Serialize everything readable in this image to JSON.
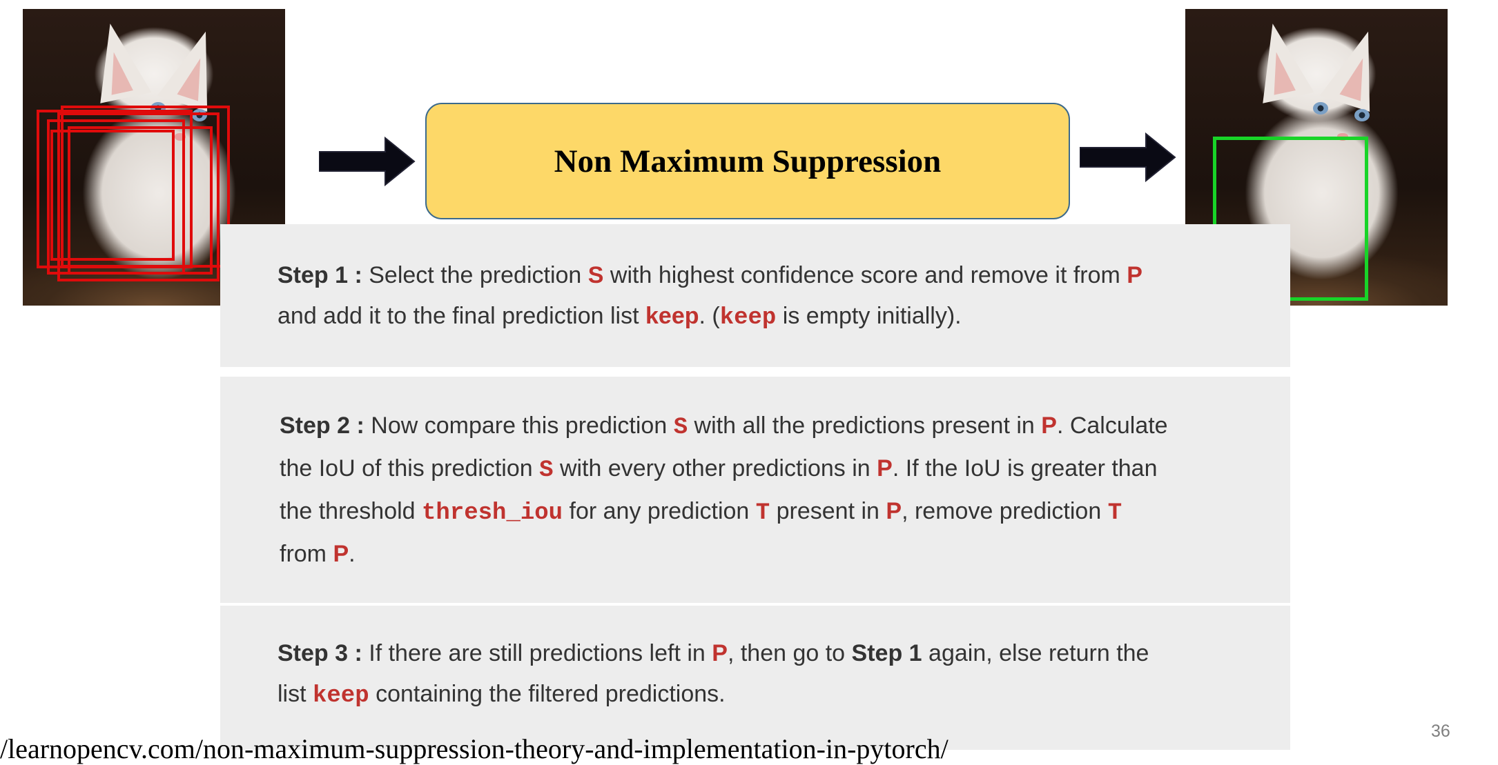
{
  "title": "Non Maximum Suppression",
  "steps": {
    "s1": {
      "label": "Step 1 :",
      "t1": " Select the prediction ",
      "S": "S",
      "t2": " with highest confidence score and remove it from ",
      "P": "P",
      "t3": "and add it to the final prediction list ",
      "keep": "keep",
      "t4": ". (",
      "keep_code": "keep",
      "t5": " is empty initially)."
    },
    "s2": {
      "label": "Step 2 :",
      "t1": " Now compare this prediction ",
      "S1": "S",
      "t2": " with all the predictions present in ",
      "P1": "P",
      "t3": ". Calculate",
      "t4": "the IoU of this prediction ",
      "S2": "S",
      "t5": " with every other predictions in ",
      "P2": "P",
      "t6": ". If the IoU is greater than",
      "t7": "the threshold ",
      "thresh": "thresh_iou",
      "t8": " for any prediction ",
      "T1": "T",
      "t9": " present in ",
      "P3": "P",
      "t10": ", remove prediction ",
      "T2": "T",
      "t11": "from ",
      "P4": "P",
      "t12": "."
    },
    "s3": {
      "label": "Step 3 :",
      "t1": " If there are still predictions left in ",
      "P": "P",
      "t2": ", then go to ",
      "step1": "Step 1",
      "t3": " again, else return the",
      "t4": "list ",
      "keep": "keep",
      "t5": " containing the filtered predictions."
    }
  },
  "footer_url": "/learnopencv.com/non-maximum-suppression-theory-and-implementation-in-pytorch/",
  "page_number": "36",
  "colors": {
    "box_fill": "#fdd868",
    "box_border": "#3c6a8c",
    "highlight": "#c0332f",
    "panel": "#ededed",
    "red_boxes": "#e00b0b",
    "green_box": "#18d428"
  },
  "icons": [
    "right-arrow-icon",
    "right-arrow-icon"
  ]
}
